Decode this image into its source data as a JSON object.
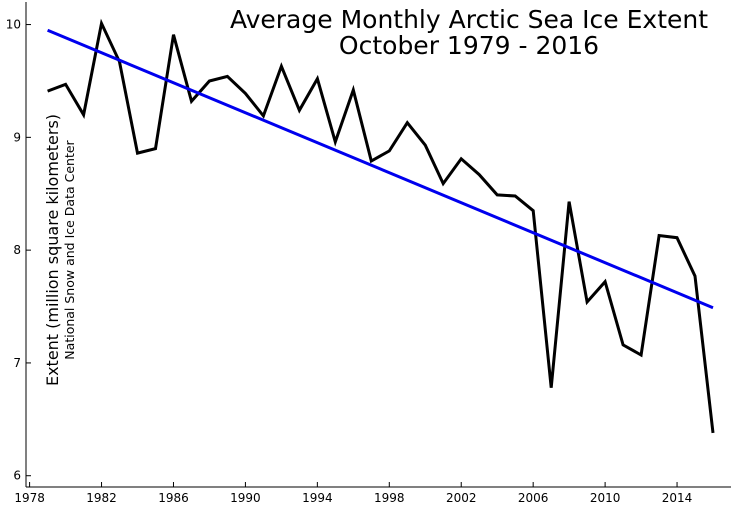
{
  "chart_data": {
    "type": "line",
    "title": [
      "Average Monthly Arctic Sea Ice Extent",
      "October 1979 - 2016"
    ],
    "ylabel": "Extent (million square kilometers)",
    "source": "National Snow and Ice Data Center",
    "xlabel": "",
    "xlim": [
      1977.8,
      2017.0
    ],
    "ylim": [
      5.9,
      10.2
    ],
    "xticks": [
      1978,
      1982,
      1986,
      1990,
      1994,
      1998,
      2002,
      2006,
      2010,
      2014
    ],
    "xtick_labels": [
      "1978",
      "1982",
      "1986",
      "1990",
      "1994",
      "1998",
      "2002",
      "2006",
      "2010",
      "2014"
    ],
    "yticks": [
      6,
      7,
      8,
      9,
      10
    ],
    "ytick_labels": [
      "6",
      "7",
      "8",
      "9",
      "10"
    ],
    "grid": false,
    "series": [
      {
        "color": "#000000",
        "x": [
          1979,
          1980,
          1981,
          1982,
          1983,
          1984,
          1985,
          1986,
          1987,
          1988,
          1989,
          1990,
          1991,
          1992,
          1993,
          1994,
          1995,
          1996,
          1997,
          1998,
          1999,
          2000,
          2001,
          2002,
          2003,
          2004,
          2005,
          2006,
          2007,
          2008,
          2009,
          2010,
          2011,
          2012,
          2013,
          2014,
          2015,
          2016
        ],
        "values": [
          9.41,
          9.47,
          9.2,
          10.01,
          9.67,
          8.86,
          8.9,
          9.91,
          9.32,
          9.5,
          9.54,
          9.39,
          9.19,
          9.63,
          9.24,
          9.52,
          8.96,
          9.42,
          8.79,
          8.88,
          9.13,
          8.93,
          8.59,
          8.81,
          8.67,
          8.49,
          8.48,
          8.35,
          6.78,
          8.43,
          7.54,
          7.72,
          7.16,
          7.07,
          8.13,
          8.11,
          7.77,
          6.38
        ]
      },
      {
        "color": "#0000ee",
        "x": [
          1979,
          2016
        ],
        "values": [
          9.95,
          7.49
        ]
      }
    ]
  }
}
